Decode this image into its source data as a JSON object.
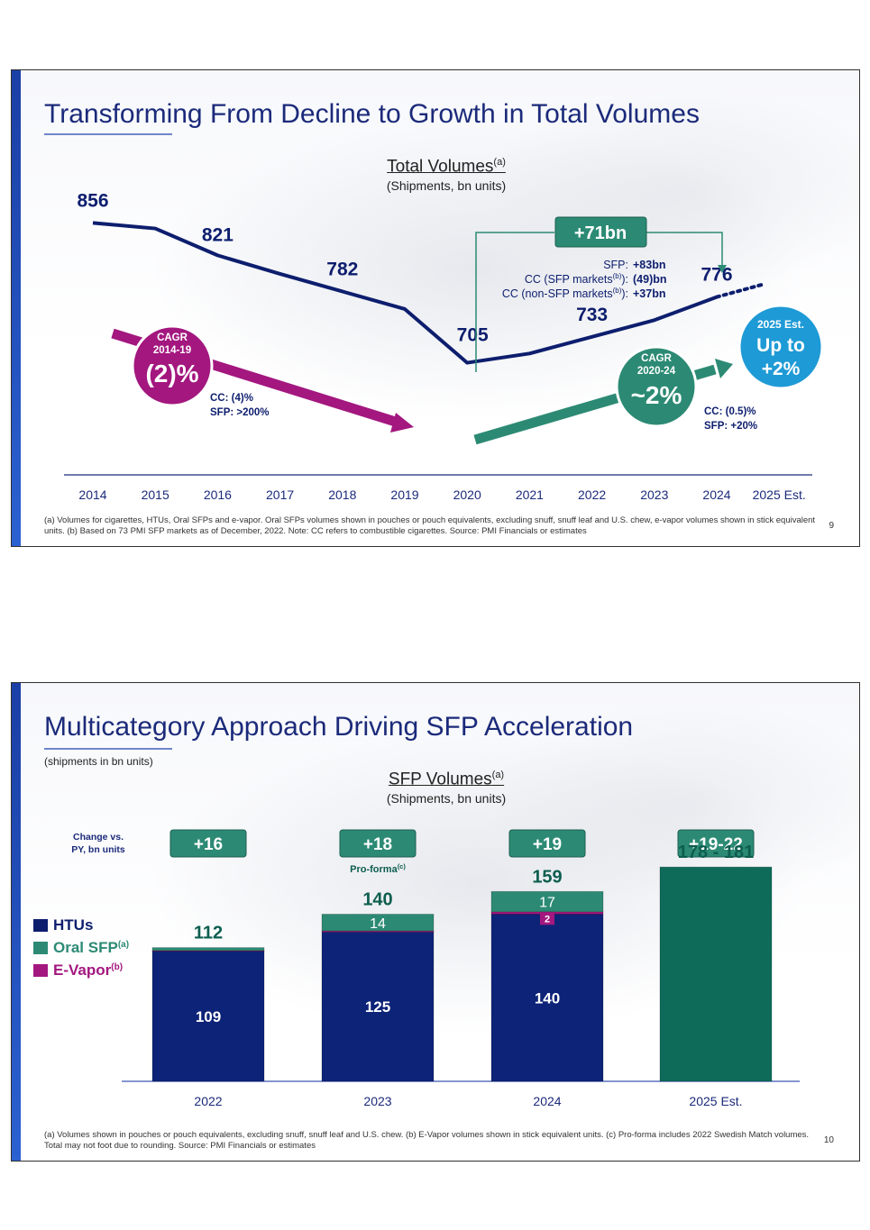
{
  "slide1": {
    "title": "Transforming From Decline to Growth in Total Volumes",
    "chart_head": "Total Volumes",
    "chart_head_sup": "(a)",
    "chart_subhead": "(Shipments, bn units)",
    "badge_delta": "+71bn",
    "breakdown": [
      {
        "label": "SFP:",
        "sup": "",
        "suffix": "",
        "value": "+83bn"
      },
      {
        "label": "CC (SFP markets",
        "sup": "(b)",
        "suffix": "):",
        "value": "(49)bn"
      },
      {
        "label": "CC (non-SFP markets",
        "sup": "(b)",
        "suffix": "):",
        "value": "+37bn"
      }
    ],
    "cagr_left": {
      "line1": "CAGR",
      "line2": "2014-19",
      "value": "(2)%",
      "note1": "CC: (4)%",
      "note2": "SFP: >200%"
    },
    "cagr_right": {
      "line1": "CAGR",
      "line2": "2020-24",
      "value": "~2%",
      "note1": "CC: (0.5)%",
      "note2": "SFP: +20%"
    },
    "est_badge": {
      "line1": "2025 Est.",
      "line2": "Up to",
      "line3": "+2%"
    },
    "footnote": "(a) Volumes for cigarettes, HTUs, Oral SFPs and e-vapor. Oral SFPs volumes shown in pouches or pouch equivalents, excluding snuff, snuff leaf and U.S. chew, e-vapor volumes shown in stick equivalent units. (b) Based on 73 PMI SFP markets as of December, 2022. Note: CC refers to combustible cigarettes. Source: PMI Financials or estimates",
    "page": "9",
    "colors": {
      "line": "#0d1e6e",
      "magenta": "#a3177f",
      "teal": "#2c8a74",
      "blue": "#1e9ad6"
    }
  },
  "slide2": {
    "title": "Multicategory Approach Driving SFP Acceleration",
    "subtitle": "(shipments in bn units)",
    "chart_head": "SFP Volumes",
    "chart_head_sup": "(a)",
    "chart_subhead": "(Shipments, bn units)",
    "change_label1": "Change vs.",
    "change_label2": "PY, bn units",
    "changes": [
      "+16",
      "+18",
      "+19",
      "+19-22"
    ],
    "proforma": "Pro-forma",
    "proforma_sup": "(c)",
    "legend": [
      {
        "label": "HTUs",
        "sup": "",
        "color": "#0d1e6e"
      },
      {
        "label": "Oral SFP",
        "sup": "(a)",
        "color": "#2c8a74"
      },
      {
        "label": "E-Vapor",
        "sup": "(b)",
        "color": "#a3177f"
      }
    ],
    "totals": [
      "112",
      "140",
      "159",
      "178 - 181"
    ],
    "footnote": "(a) Volumes shown in pouches or pouch equivalents, excluding snuff, snuff leaf and U.S. chew. (b) E-Vapor volumes shown in stick equivalent units. (c) Pro-forma includes 2022 Swedish Match volumes. Total may not foot due to rounding. Source: PMI Financials or estimates",
    "page": "10"
  },
  "chart_data": [
    {
      "type": "line",
      "title": "Total Volumes",
      "ylabel": "(Shipments, bn units)",
      "categories": [
        "2014",
        "2015",
        "2016",
        "2017",
        "2018",
        "2019",
        "2020",
        "2021",
        "2022",
        "2023",
        "2024",
        "2025 Est."
      ],
      "series": [
        {
          "values": [
            856,
            850,
            821,
            801,
            782,
            763,
            705,
            715,
            733,
            751,
            776,
            null
          ]
        }
      ],
      "labeled_points": [
        {
          "x": "2014",
          "y": 856
        },
        {
          "x": "2016",
          "y": 821
        },
        {
          "x": "2018",
          "y": 782
        },
        {
          "x": "2020",
          "y": 705
        },
        {
          "x": "2022",
          "y": 733
        },
        {
          "x": "2024",
          "y": 776
        }
      ],
      "ylim": [
        690,
        870
      ],
      "grid": false
    },
    {
      "type": "bar",
      "title": "SFP Volumes",
      "ylabel": "(Shipments, bn units)",
      "categories": [
        "2022",
        "2023",
        "2024",
        "2025 Est."
      ],
      "series": [
        {
          "name": "HTUs",
          "values": [
            109,
            125,
            140,
            null
          ],
          "labels": [
            "109",
            "125",
            "140",
            ""
          ]
        },
        {
          "name": "E-Vapor",
          "values": [
            0.5,
            1,
            2,
            null
          ],
          "labels": [
            "",
            "",
            "2",
            ""
          ]
        },
        {
          "name": "Oral SFP",
          "values": [
            2.5,
            14,
            17,
            null
          ],
          "labels": [
            "",
            "14",
            "17",
            ""
          ]
        },
        {
          "name": "Total",
          "values": [
            null,
            null,
            null,
            179.5
          ],
          "labels": [
            "",
            "",
            "",
            ""
          ]
        }
      ],
      "ylim": [
        0,
        200
      ],
      "legend": "left"
    }
  ]
}
